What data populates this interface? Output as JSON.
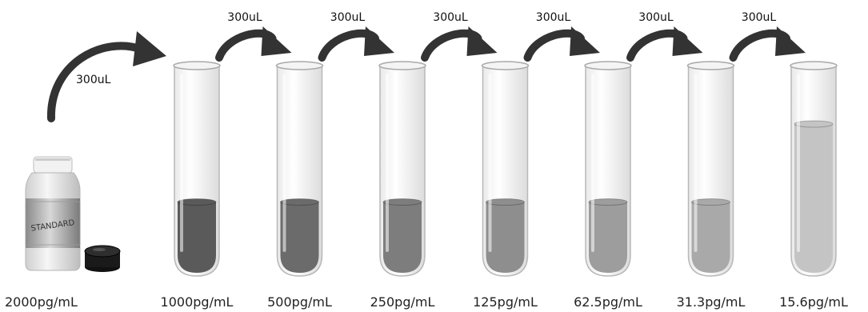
{
  "diagram": {
    "stock": {
      "label_text": "STANDARD",
      "concentration": "2000pg/mL",
      "transfer_volume": "300uL"
    },
    "tubes": [
      {
        "concentration": "1000pg/mL",
        "transfer_volume": "300uL",
        "fill_color": "#5a5a5a",
        "fill_level": 0.35
      },
      {
        "concentration": "500pg/mL",
        "transfer_volume": "300uL",
        "fill_color": "#6b6b6b",
        "fill_level": 0.35
      },
      {
        "concentration": "250pg/mL",
        "transfer_volume": "300uL",
        "fill_color": "#7d7d7d",
        "fill_level": 0.35
      },
      {
        "concentration": "125pg/mL",
        "transfer_volume": "300uL",
        "fill_color": "#8e8e8e",
        "fill_level": 0.35
      },
      {
        "concentration": "62.5pg/mL",
        "transfer_volume": "300uL",
        "fill_color": "#9d9d9d",
        "fill_level": 0.35
      },
      {
        "concentration": "31.3pg/mL",
        "transfer_volume": "300uL",
        "fill_color": "#a9a9a9",
        "fill_level": 0.35
      },
      {
        "concentration": "15.6pg/mL",
        "transfer_volume": null,
        "fill_color": "#c4c4c4",
        "fill_level": 0.74
      }
    ]
  }
}
